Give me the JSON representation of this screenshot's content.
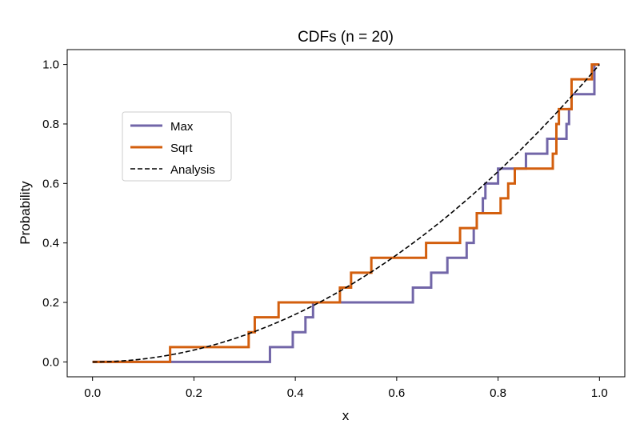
{
  "chart_data": {
    "type": "line",
    "title": "CDFs (n = 20)",
    "xlabel": "x",
    "ylabel": "Probability",
    "xlim": [
      -0.05,
      1.05
    ],
    "ylim": [
      -0.05,
      1.05
    ],
    "xticks": [
      0.0,
      0.2,
      0.4,
      0.6,
      0.8,
      1.0
    ],
    "xtick_labels": [
      "0.0",
      "0.2",
      "0.4",
      "0.6",
      "0.8",
      "1.0"
    ],
    "yticks": [
      0.0,
      0.2,
      0.4,
      0.6,
      0.8,
      1.0
    ],
    "ytick_labels": [
      "0.0",
      "0.2",
      "0.4",
      "0.6",
      "0.8",
      "1.0"
    ],
    "grid": false,
    "legend_position": "center-left",
    "series": [
      {
        "name": "Max",
        "style": "step",
        "color": "#7266a8",
        "x": [
          0.0,
          0.35,
          0.395,
          0.42,
          0.435,
          0.48,
          0.632,
          0.668,
          0.7,
          0.738,
          0.752,
          0.758,
          0.77,
          0.775,
          0.785,
          0.8,
          0.855,
          0.897,
          0.935,
          0.94,
          0.945,
          0.99,
          1.0
        ],
        "y": [
          0.0,
          0.05,
          0.1,
          0.15,
          0.2,
          0.2,
          0.25,
          0.3,
          0.35,
          0.4,
          0.45,
          0.5,
          0.55,
          0.6,
          0.6,
          0.65,
          0.7,
          0.75,
          0.8,
          0.85,
          0.9,
          1.0,
          1.0
        ]
      },
      {
        "name": "Sqrt",
        "style": "step",
        "color": "#d35f0e",
        "x": [
          0.0,
          0.153,
          0.308,
          0.32,
          0.367,
          0.478,
          0.488,
          0.51,
          0.55,
          0.658,
          0.725,
          0.758,
          0.805,
          0.82,
          0.833,
          0.908,
          0.915,
          0.92,
          0.945,
          0.985,
          1.0
        ],
        "y": [
          0.0,
          0.05,
          0.1,
          0.15,
          0.2,
          0.2,
          0.25,
          0.3,
          0.35,
          0.4,
          0.45,
          0.5,
          0.55,
          0.6,
          0.65,
          0.7,
          0.8,
          0.85,
          0.95,
          1.0,
          1.0
        ]
      },
      {
        "name": "Analysis",
        "style": "dashed",
        "color": "#000000",
        "function": "x^2",
        "x_range": [
          0.0,
          1.0
        ]
      }
    ]
  }
}
